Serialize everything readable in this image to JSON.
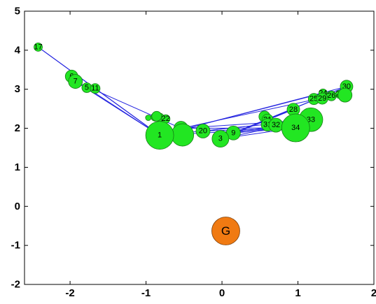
{
  "chart_data": {
    "type": "scatter",
    "title": "",
    "xlabel": "",
    "ylabel": "",
    "xlim": [
      -2.6,
      2.0
    ],
    "ylim": [
      -2,
      5
    ],
    "x_ticks": [
      -2,
      -1,
      0,
      1,
      2
    ],
    "y_ticks": [
      -2,
      -1,
      0,
      1,
      2,
      3,
      4,
      5
    ],
    "x_tick_labels": [
      "-2",
      "-1",
      "0",
      "1",
      "2"
    ],
    "y_tick_labels": [
      "-2",
      "-1",
      "0",
      "1",
      "2",
      "3",
      "4",
      "5"
    ],
    "grid": false,
    "legend": "none",
    "colors": {
      "node_fill": "#22e622",
      "node_stroke": "#167a16",
      "edge": "#2626e0",
      "center_fill": "#f07a12",
      "center_stroke": "#7a3d08",
      "axis": "#000000"
    },
    "edges": [
      [
        17,
        1
      ],
      [
        17,
        1
      ],
      [
        17,
        1
      ],
      [
        7,
        1
      ],
      [
        7,
        8
      ],
      [
        7,
        1
      ],
      [
        5,
        1
      ],
      [
        11,
        1
      ],
      [
        17,
        12
      ],
      [
        1,
        34
      ],
      [
        1,
        33
      ],
      [
        8,
        34
      ],
      [
        3,
        34
      ],
      [
        9,
        34
      ],
      [
        20,
        34
      ],
      [
        1,
        30
      ],
      [
        8,
        33
      ],
      [
        3,
        33
      ],
      [
        9,
        33
      ],
      [
        32,
        34
      ],
      [
        31,
        34
      ],
      [
        28,
        34
      ],
      [
        21,
        34
      ],
      [
        3,
        30
      ],
      [
        9,
        30
      ],
      [
        1,
        24
      ],
      [
        8,
        26
      ],
      [
        20,
        33
      ],
      [
        12,
        34
      ],
      [
        3,
        28
      ],
      [
        9,
        28
      ]
    ],
    "nodes": [
      {
        "id": "17",
        "label": "17",
        "x": -2.42,
        "y": 4.08,
        "size": 0.06
      },
      {
        "id": "6",
        "label": "6",
        "x": -1.98,
        "y": 3.33,
        "size": 0.09
      },
      {
        "id": "7",
        "label": "7",
        "x": -1.93,
        "y": 3.2,
        "size": 0.1
      },
      {
        "id": "5",
        "label": "5",
        "x": -1.78,
        "y": 3.04,
        "size": 0.07
      },
      {
        "id": "11",
        "label": "11",
        "x": -1.67,
        "y": 3.02,
        "size": 0.07
      },
      {
        "id": "13",
        "label": "",
        "x": -0.97,
        "y": 2.27,
        "size": 0.04
      },
      {
        "id": "4",
        "label": "",
        "x": -0.88,
        "y": 2.29,
        "size": 0.06
      },
      {
        "id": "14",
        "label": "",
        "x": -0.86,
        "y": 2.31,
        "size": 0.07
      },
      {
        "id": "18",
        "label": "",
        "x": -0.82,
        "y": 2.28,
        "size": 0.06
      },
      {
        "id": "22",
        "label": "22",
        "x": -0.74,
        "y": 2.24,
        "size": 0.06
      },
      {
        "id": "1",
        "label": "1",
        "x": -0.82,
        "y": 1.82,
        "size": 0.2
      },
      {
        "id": "2",
        "label": "",
        "x": -0.52,
        "y": 1.83,
        "size": 0.16
      },
      {
        "id": "8",
        "label": "8",
        "x": -0.54,
        "y": 2.0,
        "size": 0.1
      },
      {
        "id": "20",
        "label": "20",
        "x": -0.25,
        "y": 1.93,
        "size": 0.1
      },
      {
        "id": "3",
        "label": "3",
        "x": -0.02,
        "y": 1.73,
        "size": 0.12
      },
      {
        "id": "9",
        "label": "9",
        "x": 0.15,
        "y": 1.88,
        "size": 0.1
      },
      {
        "id": "10",
        "label": "",
        "x": 0.56,
        "y": 2.3,
        "size": 0.08
      },
      {
        "id": "21",
        "label": "21",
        "x": 0.6,
        "y": 2.22,
        "size": 0.08
      },
      {
        "id": "31",
        "label": "31",
        "x": 0.6,
        "y": 2.09,
        "size": 0.09
      },
      {
        "id": "32",
        "label": "32",
        "x": 0.71,
        "y": 2.08,
        "size": 0.1
      },
      {
        "id": "28",
        "label": "28",
        "x": 0.94,
        "y": 2.48,
        "size": 0.09
      },
      {
        "id": "34",
        "label": "34",
        "x": 0.97,
        "y": 2.01,
        "size": 0.2
      },
      {
        "id": "33",
        "label": "33",
        "x": 1.17,
        "y": 2.22,
        "size": 0.17
      },
      {
        "id": "25",
        "label": "25",
        "x": 1.21,
        "y": 2.75,
        "size": 0.08
      },
      {
        "id": "29",
        "label": "29",
        "x": 1.32,
        "y": 2.76,
        "size": 0.08
      },
      {
        "id": "24",
        "label": "24",
        "x": 1.33,
        "y": 2.9,
        "size": 0.06
      },
      {
        "id": "26",
        "label": "26",
        "x": 1.44,
        "y": 2.83,
        "size": 0.07
      },
      {
        "id": "27",
        "label": "27",
        "x": 1.55,
        "y": 2.87,
        "size": 0.06
      },
      {
        "id": "23",
        "label": "",
        "x": 1.62,
        "y": 2.85,
        "size": 0.1
      },
      {
        "id": "30",
        "label": "30",
        "x": 1.64,
        "y": 3.07,
        "size": 0.09
      },
      {
        "id": "G",
        "label": "G",
        "x": 0.05,
        "y": -0.63,
        "size": 0.2,
        "kind": "center"
      }
    ]
  }
}
